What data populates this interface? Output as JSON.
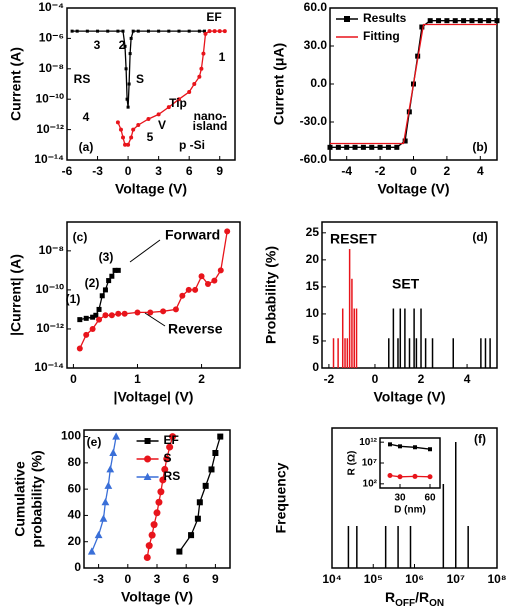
{
  "chart_data": [
    {
      "type": "line",
      "xlabel": "Voltage (V)",
      "ylabel": "Current (A)",
      "yscale": "log",
      "xlim": [
        -6,
        10.5
      ],
      "xticks": [
        -6,
        -3,
        0,
        3,
        6,
        9
      ],
      "ylim": [
        1e-14,
        0.0001
      ],
      "yticks": [
        {
          "value": 1e-14,
          "label": "10⁻¹⁴"
        },
        {
          "value": 1e-12,
          "label": "10⁻¹²"
        },
        {
          "value": 1e-10,
          "label": "10⁻¹⁰"
        },
        {
          "value": 1e-08,
          "label": "10⁻⁸"
        },
        {
          "value": 1e-06,
          "label": "10⁻⁶"
        },
        {
          "value": 0.0001,
          "label": "10⁻⁴"
        }
      ],
      "series": [
        {
          "color": "#000000",
          "marker": "square",
          "x": [
            -5.5,
            -5,
            -4,
            -3,
            -2,
            -1,
            -0.5,
            -0.3,
            -0.2,
            -0.1,
            0,
            0.1,
            0.2,
            0.3,
            0.5,
            1,
            2,
            3,
            4,
            5,
            6,
            7,
            7.5
          ],
          "values": [
            3e-06,
            3e-06,
            3e-06,
            3e-06,
            3e-06,
            3e-06,
            3e-06,
            3e-07,
            1e-08,
            1e-10,
            3e-11,
            1e-09,
            1e-07,
            1e-06,
            3e-06,
            3e-06,
            3e-06,
            3e-06,
            3e-06,
            3e-06,
            3e-06,
            3e-06,
            3e-06
          ]
        },
        {
          "color": "#e8141b",
          "marker": "circle",
          "x": [
            -1,
            -0.7,
            -0.5,
            -0.3,
            0,
            0.3,
            0.5,
            1,
            2,
            3,
            4,
            5,
            6,
            6.5,
            7,
            7.2,
            7.4,
            7.6,
            8,
            8.5,
            9,
            9.5
          ],
          "values": [
            3e-12,
            1e-12,
            3e-13,
            1e-13,
            1e-13,
            3e-13,
            1e-12,
            2e-12,
            5e-12,
            1e-11,
            3e-11,
            1e-10,
            3e-10,
            1e-09,
            3e-09,
            1e-08,
            1e-07,
            2e-06,
            3e-06,
            3e-06,
            3e-06,
            3e-06
          ]
        }
      ],
      "annotations": [
        "(a)",
        "EF",
        "1",
        "2",
        "3",
        "RS",
        "S",
        "4",
        "5",
        "Tip",
        "nano-",
        "island",
        "V",
        "p -Si"
      ]
    },
    {
      "type": "line",
      "xlabel": "Voltage (V)",
      "ylabel": "Current (μA)",
      "xlim": [
        -5,
        5
      ],
      "xticks": [
        -4,
        -2,
        0,
        2,
        4
      ],
      "ylim": [
        -60,
        60
      ],
      "yticks": [
        {
          "value": -60,
          "label": "-60.0"
        },
        {
          "value": -30,
          "label": "-30.0"
        },
        {
          "value": 0,
          "label": "0.0"
        },
        {
          "value": 30,
          "label": "30.0"
        },
        {
          "value": 60,
          "label": "60.0"
        }
      ],
      "legend": "upper left",
      "series": [
        {
          "name": "Results",
          "color": "#000000",
          "marker": "square",
          "x": [
            -5,
            -4.5,
            -4,
            -3.5,
            -3,
            -2.5,
            -2,
            -1.5,
            -1,
            -0.5,
            -0.25,
            0,
            0.25,
            0.5,
            1,
            1.5,
            2,
            2.5,
            3,
            3.5,
            4,
            4.5,
            5
          ],
          "values": [
            -50,
            -50,
            -50,
            -50,
            -50,
            -50,
            -50,
            -50,
            -50,
            -45,
            -22,
            0,
            22,
            45,
            50,
            50,
            50,
            50,
            50,
            50,
            50,
            50,
            50
          ]
        },
        {
          "name": "Fitting",
          "color": "#e8141b",
          "marker": "none",
          "x": [
            -5,
            -0.6,
            0.6,
            5
          ],
          "values": [
            -47,
            -47,
            47,
            47
          ]
        }
      ],
      "annotations": [
        "(b)"
      ]
    },
    {
      "type": "line",
      "xlabel": "|Voltage| (V)",
      "ylabel": "|Current| (A)",
      "yscale": "log",
      "xlim": [
        -0.1,
        2.6
      ],
      "xticks": [
        0,
        1,
        2
      ],
      "ylim": [
        1e-14,
        3e-07
      ],
      "yticks": [
        {
          "value": 1e-14,
          "label": "10⁻¹⁴"
        },
        {
          "value": 1e-12,
          "label": "10⁻¹²"
        },
        {
          "value": 1e-10,
          "label": "10⁻¹⁰"
        },
        {
          "value": 1e-08,
          "label": "10⁻⁸"
        }
      ],
      "series": [
        {
          "name": "Forward",
          "color": "#000000",
          "marker": "square",
          "x": [
            0.1,
            0.2,
            0.3,
            0.35,
            0.4,
            0.45,
            0.5,
            0.55,
            0.6,
            0.65,
            0.7
          ],
          "values": [
            3e-12,
            3.5e-12,
            4e-12,
            5e-12,
            1e-11,
            5e-11,
            1e-10,
            3e-10,
            5e-10,
            1e-09,
            1e-09
          ]
        },
        {
          "name": "Reverse",
          "color": "#e8141b",
          "marker": "circle",
          "x": [
            0.1,
            0.2,
            0.3,
            0.4,
            0.5,
            0.6,
            0.7,
            0.8,
            1.0,
            1.2,
            1.4,
            1.6,
            1.7,
            1.8,
            1.9,
            2.0,
            2.1,
            2.2,
            2.3,
            2.4
          ],
          "values": [
            1e-13,
            5e-13,
            1e-12,
            3e-12,
            5e-12,
            5e-12,
            6e-12,
            6e-12,
            7e-12,
            7e-12,
            8e-12,
            1e-11,
            5e-11,
            1e-10,
            1e-10,
            5e-10,
            2e-10,
            3e-10,
            1e-09,
            1e-07
          ]
        }
      ],
      "annotations": [
        "(c)",
        "(1)",
        "(2)",
        "(3)"
      ]
    },
    {
      "type": "bar",
      "xlabel": "Voltage (V)",
      "ylabel": "Probability (%)",
      "xlim": [
        -2.3,
        5.3
      ],
      "xticks": [
        -2,
        0,
        2,
        4
      ],
      "ylim": [
        0,
        27
      ],
      "yticks": [
        0,
        5,
        10,
        15,
        20,
        25
      ],
      "series": [
        {
          "name": "RESET",
          "color": "#e8141b",
          "x": [
            -1.8,
            -1.6,
            -1.4,
            -1.3,
            -1.2,
            -1.1,
            -1.0,
            -0.9,
            -0.8
          ],
          "values": [
            5.5,
            5.5,
            11,
            5.5,
            5.5,
            22,
            16.5,
            11,
            11
          ]
        },
        {
          "name": "SET",
          "color": "#000000",
          "x": [
            0.6,
            0.8,
            1.0,
            1.1,
            1.3,
            1.5,
            1.7,
            1.8,
            2.0,
            2.2,
            2.5,
            3.4,
            4.6,
            4.8,
            5.0
          ],
          "values": [
            5.5,
            11,
            5.5,
            11,
            11,
            5.5,
            11,
            5.5,
            11,
            5.5,
            5.5,
            5.5,
            5.5,
            5.5,
            5.5
          ]
        }
      ],
      "annotations": [
        "(d)"
      ]
    },
    {
      "type": "line",
      "xlabel": "Voltage (V)",
      "ylabel": [
        "Cumulative",
        "probability (%)"
      ],
      "xlim": [
        -4.5,
        10.5
      ],
      "xticks": [
        -3,
        0,
        3,
        6,
        9
      ],
      "ylim": [
        0,
        105
      ],
      "yticks": [
        0,
        20,
        40,
        60,
        80,
        100
      ],
      "legend": "upper center",
      "series": [
        {
          "name": "EF",
          "color": "#000000",
          "marker": "square",
          "x": [
            5.3,
            6.5,
            7.2,
            7.4,
            8.0,
            8.6,
            9.0,
            9.5
          ],
          "values": [
            12.5,
            25,
            37.5,
            50,
            62.5,
            75,
            87.5,
            100
          ]
        },
        {
          "name": "S",
          "color": "#e8141b",
          "marker": "circle",
          "x": [
            2,
            2.2,
            2.5,
            2.7,
            3,
            3.2,
            3.4,
            3.6,
            3.8,
            4,
            4.3,
            4.6
          ],
          "values": [
            8,
            17,
            25,
            33,
            42,
            50,
            58,
            67,
            75,
            83,
            92,
            100
          ]
        },
        {
          "name": "RS",
          "color": "#3a6fd8",
          "marker": "triangle",
          "x": [
            -3.7,
            -3,
            -2.5,
            -2.3,
            -2,
            -1.8,
            -1.5,
            -1.2
          ],
          "values": [
            12.5,
            25,
            37.5,
            50,
            62.5,
            75,
            87.5,
            100
          ]
        }
      ],
      "annotations": [
        "(e)"
      ]
    },
    {
      "type": "bar",
      "xlabel": [
        "R",
        "OFF",
        "/R",
        "ON"
      ],
      "ylabel": "Frequency",
      "xscale": "log",
      "xlim": [
        10000,
        100000000
      ],
      "xticks": [
        {
          "value": 10000,
          "label": "10⁴"
        },
        {
          "value": 100000,
          "label": "10⁵"
        },
        {
          "value": 1000000,
          "label": "10⁶"
        },
        {
          "value": 10000000,
          "label": "10⁷"
        },
        {
          "value": 100000000,
          "label": "10⁸"
        }
      ],
      "ylim": [
        0,
        30
      ],
      "series": [
        {
          "color": "#000000",
          "x": [
            25000,
            40000,
            200000,
            400000,
            800000,
            5000000,
            10000000,
            20000000
          ],
          "values": [
            9,
            9,
            9,
            9,
            9,
            18,
            27,
            9
          ]
        }
      ],
      "annotations": [
        "(f)"
      ]
    },
    {
      "type": "line",
      "xlabel": "D (nm)",
      "ylabel": "R (Ω)",
      "yscale": "log",
      "xlim": [
        10,
        70
      ],
      "xticks": [
        30,
        60
      ],
      "ylim": [
        10,
        10000000000000.0
      ],
      "yticks": [
        {
          "value": 100,
          "label": "10²"
        },
        {
          "value": 10000000,
          "label": "10⁷"
        },
        {
          "value": 1000000000000,
          "label": "10¹²"
        }
      ],
      "series": [
        {
          "color": "#000000",
          "marker": "square",
          "x": [
            20,
            30,
            45,
            60
          ],
          "values": [
            300000000000,
            100000000000,
            60000000000,
            20000000000
          ]
        },
        {
          "color": "#e8141b",
          "marker": "circle",
          "x": [
            20,
            30,
            45,
            60
          ],
          "values": [
            10000,
            5000,
            6000,
            5000
          ]
        }
      ]
    }
  ]
}
